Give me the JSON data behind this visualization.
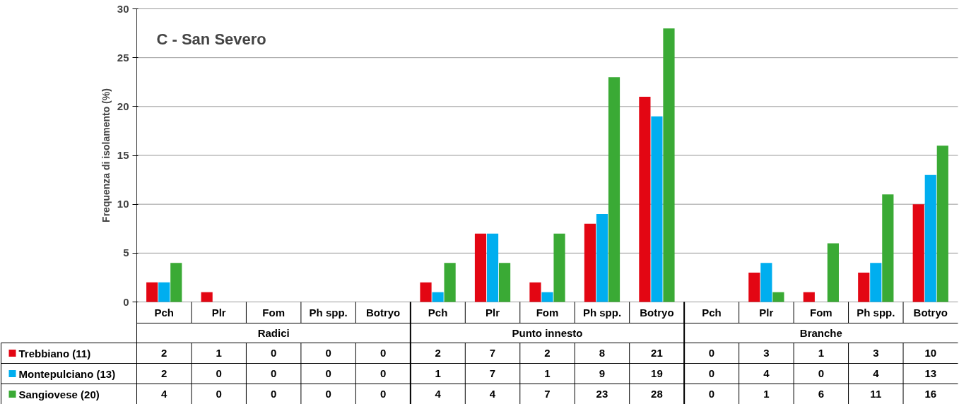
{
  "chart_data": {
    "type": "bar",
    "title": "C - San Severo",
    "ylabel": "Frequenza di isolamento (%)",
    "categories": [
      "Pch",
      "Plr",
      "Fom",
      "Ph spp.",
      "Botryo",
      "Pch",
      "Plr",
      "Fom",
      "Ph spp.",
      "Botryo",
      "Pch",
      "Plr",
      "Fom",
      "Ph spp.",
      "Botryo"
    ],
    "annotations": [
      "Radici",
      "Punto innesto",
      "Branche"
    ],
    "series": [
      {
        "name": "Trebbiano  (11)",
        "color": "#e30613",
        "values": [
          2,
          1,
          0,
          0,
          0,
          2,
          7,
          2,
          8,
          21,
          0,
          3,
          1,
          3,
          10
        ]
      },
      {
        "name": "Montepulciano (13)",
        "color": "#00aeef",
        "values": [
          2,
          0,
          0,
          0,
          0,
          1,
          7,
          1,
          9,
          19,
          0,
          4,
          0,
          4,
          13
        ]
      },
      {
        "name": "Sangiovese (20)",
        "color": "#3aaa35",
        "values": [
          4,
          0,
          0,
          0,
          0,
          4,
          4,
          7,
          23,
          28,
          0,
          1,
          6,
          11,
          16
        ]
      }
    ],
    "ylim": [
      0,
      30
    ],
    "yticks": [
      0,
      5,
      10,
      15,
      20,
      25,
      30
    ],
    "grid": "y",
    "legend": "bottom left",
    "data_labels": true
  }
}
